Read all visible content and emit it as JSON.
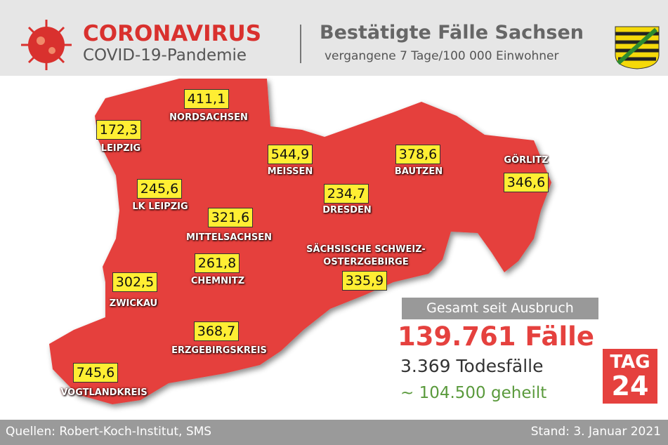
{
  "header": {
    "title": "CORONAVIRUS",
    "subtitle": "COVID-19-Pandemie",
    "heading": "Bestätigte Fälle Sachsen",
    "subheading": "vergangene 7 Tage/100 000 Einwohner"
  },
  "regions": [
    {
      "name": "NORDSACHSEN",
      "value": "411,1"
    },
    {
      "name": "LEIPZIG",
      "value": "172,3"
    },
    {
      "name": "MEISSEN",
      "value": "544,9"
    },
    {
      "name": "BAUTZEN",
      "value": "378,6"
    },
    {
      "name": "GÖRLITZ",
      "value": "346,6"
    },
    {
      "name": "LK LEIPZIG",
      "value": "245,6"
    },
    {
      "name": "DRESDEN",
      "value": "234,7"
    },
    {
      "name": "MITTELSACHSEN",
      "value": "321,6"
    },
    {
      "name": "SÄCHSISCHE SCHWEIZ-OSTERZGEBIRGE",
      "value": "335,9"
    },
    {
      "name": "CHEMNITZ",
      "value": "261,8"
    },
    {
      "name": "ZWICKAU",
      "value": "302,5"
    },
    {
      "name": "ERZGEBIRGSKREIS",
      "value": "368,7"
    },
    {
      "name": "VOGTLANDKREIS",
      "value": "745,6"
    }
  ],
  "summary": {
    "label": "Gesamt seit Ausbruch",
    "cases": "139.761 Fälle",
    "deaths": "3.369 Todesfälle",
    "recovered": "~ 104.500 geheilt"
  },
  "logo": {
    "top": "TAG",
    "bottom": "24"
  },
  "footer": {
    "source": "Quellen: Robert-Koch-Institut, SMS",
    "date": "Stand: 3. Januar 2021"
  }
}
